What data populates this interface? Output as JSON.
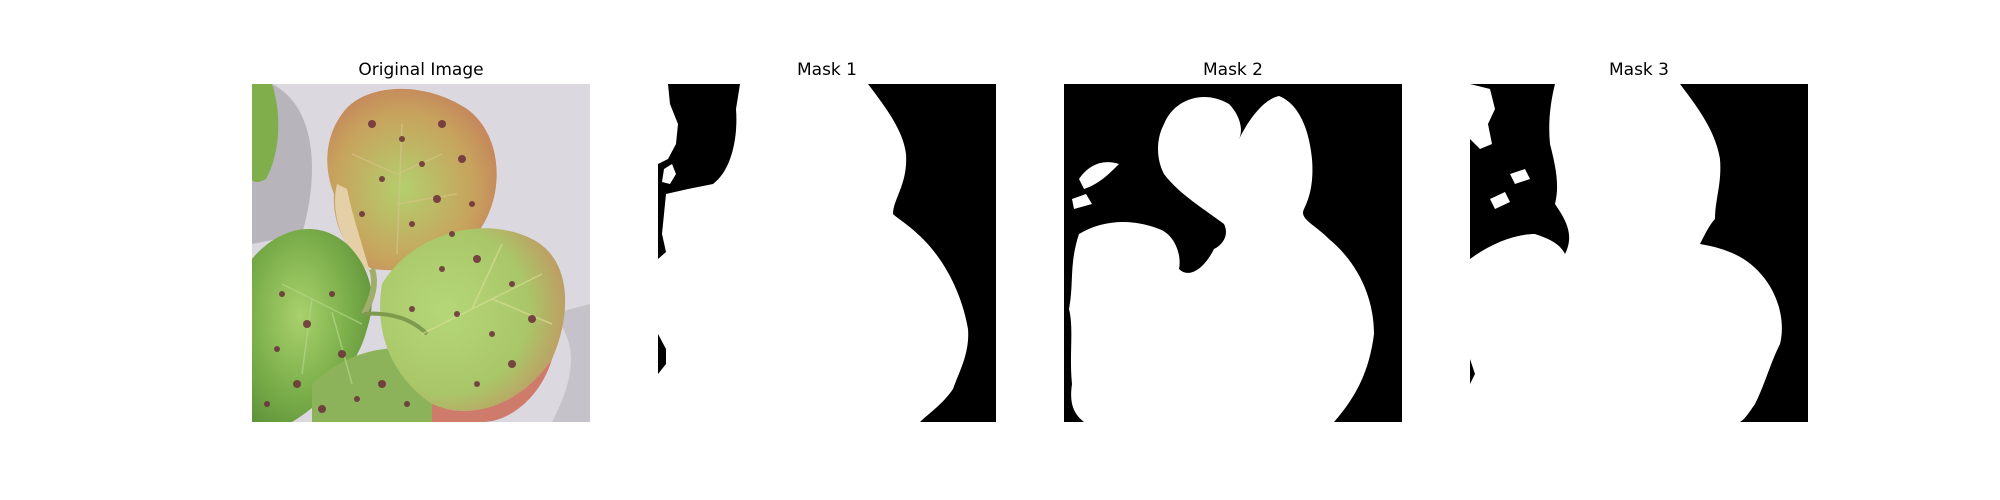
{
  "figure": {
    "panels": [
      {
        "title": "Original Image",
        "kind": "photo",
        "subject": "strawberry-leaf"
      },
      {
        "title": "Mask 1",
        "kind": "mask"
      },
      {
        "title": "Mask 2",
        "kind": "mask"
      },
      {
        "title": "Mask 3",
        "kind": "mask"
      }
    ],
    "colors": {
      "background": "#ffffff",
      "mask_foreground": "#ffffff",
      "mask_background": "#000000",
      "leaf_green": "#8fbf55",
      "leaf_red": "#c56a55",
      "leaf_spot": "#6b2e3a",
      "backdrop": "#d9d5dc"
    }
  }
}
